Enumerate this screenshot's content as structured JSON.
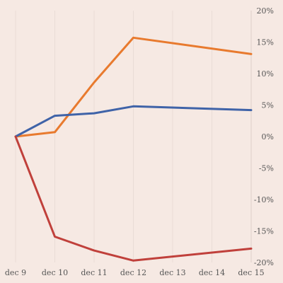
{
  "chart_data": {
    "type": "line",
    "title": "",
    "xlabel": "",
    "ylabel": "",
    "x": [
      "dec 9",
      "dec 10",
      "dec 11",
      "dec 12",
      "dec 13",
      "dec 14",
      "dec 15"
    ],
    "x_tick_labels": [
      "dec 9",
      "dec 10",
      "dec 11",
      "dec 12",
      "dec 13",
      "dec 14",
      "dec 15"
    ],
    "y_tick_labels": [
      "20%",
      "15%",
      "10%",
      "5%",
      "0%",
      "-5%",
      "-10%",
      "-15%",
      "-20%"
    ],
    "y_ticks": [
      20,
      15,
      10,
      5,
      0,
      -5,
      -10,
      -15,
      -20
    ],
    "ylim": [
      -20,
      20
    ],
    "y_axis_position": "right",
    "grid": "vertical",
    "legend": "none",
    "series": [
      {
        "color": "#e87a2e",
        "values": [
          0,
          0.7,
          8.6,
          15.7,
          null,
          null,
          13.1
        ]
      },
      {
        "color": "#3f63a8",
        "values": [
          0,
          3.3,
          3.7,
          4.8,
          null,
          null,
          4.2
        ]
      },
      {
        "color": "#c0403b",
        "values": [
          0,
          -15.9,
          -18.1,
          -19.7,
          null,
          null,
          -17.8
        ]
      }
    ]
  }
}
